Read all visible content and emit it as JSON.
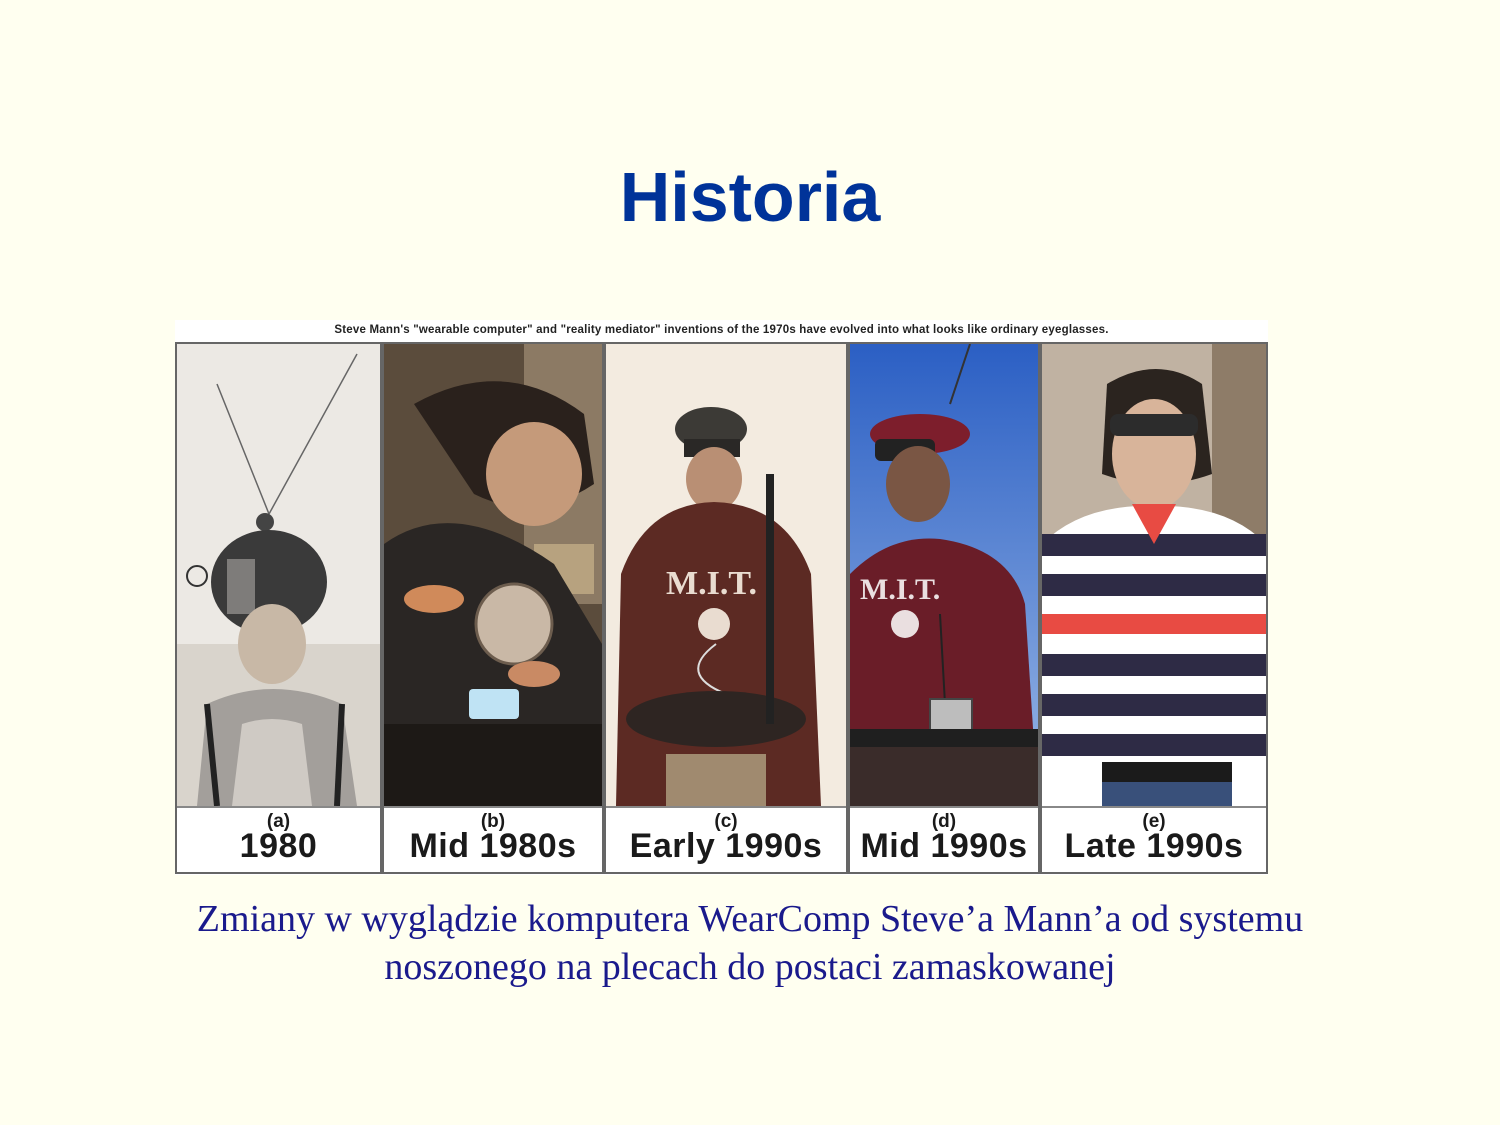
{
  "slide": {
    "title": "Historia"
  },
  "figure": {
    "header": "Steve Mann's \"wearable computer\" and \"reality mediator\" inventions of the 1970s have evolved into what looks like ordinary eyeglasses.",
    "panels": [
      {
        "letter": "(a)",
        "period": "1980",
        "photo_colors": {
          "bg": "#e8e6e2",
          "main": "#8c8a88"
        }
      },
      {
        "letter": "(b)",
        "period": "Mid 1980s",
        "photo_colors": {
          "bg": "#5a4a3a",
          "main": "#2a2420"
        }
      },
      {
        "letter": "(c)",
        "period": "Early 1990s",
        "photo_colors": {
          "bg": "#f4ece2",
          "main": "#5e2a24"
        }
      },
      {
        "letter": "(d)",
        "period": "Mid 1990s",
        "photo_colors": {
          "bg": "#2f66c8",
          "main": "#6c1e2a"
        }
      },
      {
        "letter": "(e)",
        "period": "Late 1990s",
        "photo_colors": {
          "bg": "#b9aa98",
          "main": "#2f2a44"
        }
      }
    ]
  },
  "caption": {
    "line1": "Zmiany w wyglądzie komputera WearComp Steve’a Mann’a od systemu",
    "line2": "noszonego na plecach do postaci zamaskowanej"
  }
}
